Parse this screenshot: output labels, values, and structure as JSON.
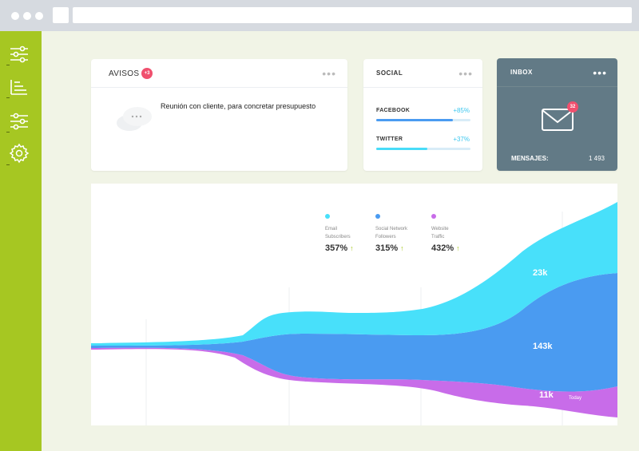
{
  "window": {
    "title": ""
  },
  "sidebar": {
    "items": [
      {
        "icon": "sliders-icon"
      },
      {
        "icon": "list-icon"
      },
      {
        "icon": "sliders-icon"
      },
      {
        "icon": "gear-icon"
      }
    ]
  },
  "avisos": {
    "title": "AVISOS",
    "badge": "+3",
    "message": "Reunión con cliente, para concretar presupuesto",
    "more": "•••"
  },
  "social": {
    "title": "SOCIAL",
    "more": "•••",
    "items": [
      {
        "label": "FACEBOOK",
        "value": "+85%",
        "level": 0.81,
        "color": "#4a9bf1"
      },
      {
        "label": "TWITTER",
        "value": "+37%",
        "level": 0.54,
        "color": "#48dcf8"
      }
    ]
  },
  "inbox": {
    "title": "INBOX",
    "more": "•••",
    "badge": "32",
    "label": "MENSAJES:",
    "count": "1 493"
  },
  "chart": {
    "legend": [
      {
        "name_line1": "Email",
        "name_line2": "Subscribers",
        "pct": "357%",
        "color": "#48e0fa"
      },
      {
        "name_line1": "Social Network",
        "name_line2": "Followers",
        "pct": "315%",
        "color": "#4a9bf1"
      },
      {
        "name_line1": "Website",
        "name_line2": "Traffic",
        "pct": "432%",
        "color": "#c86ce9"
      }
    ],
    "arrow": "↑",
    "labels": {
      "email": "23k",
      "social": "143k",
      "web": "11k",
      "today": "Today"
    }
  },
  "colors": {
    "sidebar": "#a6c722",
    "email": "#48e0fa",
    "social": "#4a9bf1",
    "web": "#c86ce9",
    "inbox_bg": "#627a86",
    "badge": "#f0506e"
  }
}
